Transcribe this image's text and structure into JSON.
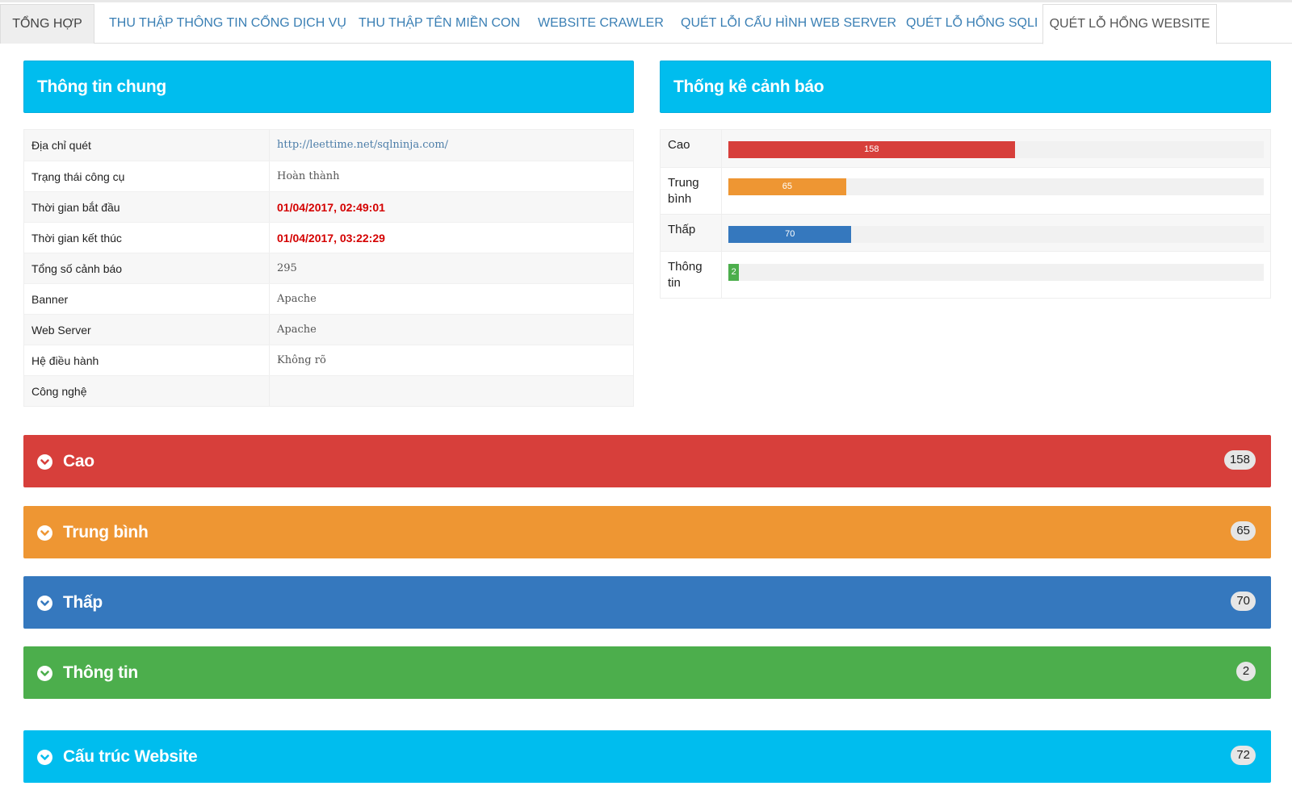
{
  "tabs": [
    {
      "label": "TỔNG HỢP"
    },
    {
      "label": "THU THẬP THÔNG TIN CỔNG DỊCH VỤ"
    },
    {
      "label": "THU THẬP TÊN MIỀN CON"
    },
    {
      "label": "WEBSITE CRAWLER"
    },
    {
      "label": "QUÉT LỖI CẤU HÌNH WEB SERVER"
    },
    {
      "label": "QUÉT LỖ HỔNG SQLI"
    },
    {
      "label": "QUÉT LỖ HỔNG WEBSITE"
    }
  ],
  "active_tab": "QUÉT LỖ HỔNG WEBSITE",
  "general": {
    "title": "Thông tin chung",
    "rows": [
      {
        "label": "Địa chỉ quét",
        "value": "http://leettime.net/sqlninja.com/"
      },
      {
        "label": "Trạng thái công cụ",
        "value": "Hoàn thành"
      },
      {
        "label": "Thời gian bắt đầu",
        "value": "01/04/2017, 02:49:01"
      },
      {
        "label": "Thời gian kết thúc",
        "value": "01/04/2017, 03:22:29"
      },
      {
        "label": "Tổng số cảnh báo",
        "value": "295"
      },
      {
        "label": "Banner",
        "value": "Apache"
      },
      {
        "label": "Web Server",
        "value": "Apache"
      },
      {
        "label": "Hệ điều hành",
        "value": "Không rõ"
      },
      {
        "label": "Công nghệ",
        "value": ""
      }
    ]
  },
  "stats": {
    "title": "Thống kê cảnh báo",
    "rows": [
      {
        "label": "Cao",
        "value": "158",
        "fraction": 0.535,
        "color": "#d73f3b"
      },
      {
        "label": "Trung bình",
        "value": "65",
        "fraction": 0.22,
        "color": "#ee9633"
      },
      {
        "label": "Thấp",
        "value": "70",
        "fraction": 0.23,
        "color": "#3578be"
      },
      {
        "label": "Thông tin",
        "value": "2",
        "fraction": 0.02,
        "color": "#4cae4c"
      }
    ]
  },
  "categories": [
    {
      "title": "Cao",
      "count": "158",
      "color": "#d73f3b"
    },
    {
      "title": "Trung bình",
      "count": "65",
      "color": "#ee9633"
    },
    {
      "title": "Thấp",
      "count": "70",
      "color": "#3578be"
    },
    {
      "title": "Thông tin",
      "count": "2",
      "color": "#4cae4c"
    },
    {
      "title": "Cấu trúc Website",
      "count": "72",
      "color": "#00bdee"
    }
  ]
}
